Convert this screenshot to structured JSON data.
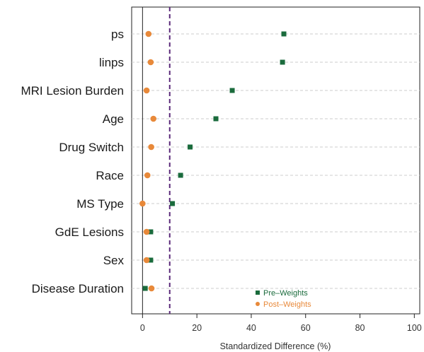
{
  "chart_data": {
    "type": "scatter",
    "xlabel": "Standardized Difference (%)",
    "xlim": [
      -4,
      102
    ],
    "xticks": [
      0,
      20,
      40,
      60,
      80,
      100
    ],
    "reference_lines": {
      "solid": 0,
      "dashed": 10
    },
    "categories": [
      "ps",
      "linps",
      "MRI Lesion Burden",
      "Age",
      "Drug Switch",
      "Race",
      "MS Type",
      "GdE Lesions",
      "Sex",
      "Disease Duration"
    ],
    "series": [
      {
        "name": "Pre–Weights",
        "marker": "square",
        "color": "#1a6b3c",
        "values": [
          52,
          51.5,
          33,
          27,
          17.5,
          14,
          11,
          3,
          3,
          1
        ]
      },
      {
        "name": "Post–Weights",
        "marker": "circle",
        "color": "#e8893a",
        "values": [
          2.2,
          3,
          1.5,
          4,
          3.2,
          1.8,
          0,
          1.5,
          1.5,
          3.3
        ]
      }
    ],
    "legend_position": "bottom-center",
    "grid": "horizontal-dashed"
  }
}
